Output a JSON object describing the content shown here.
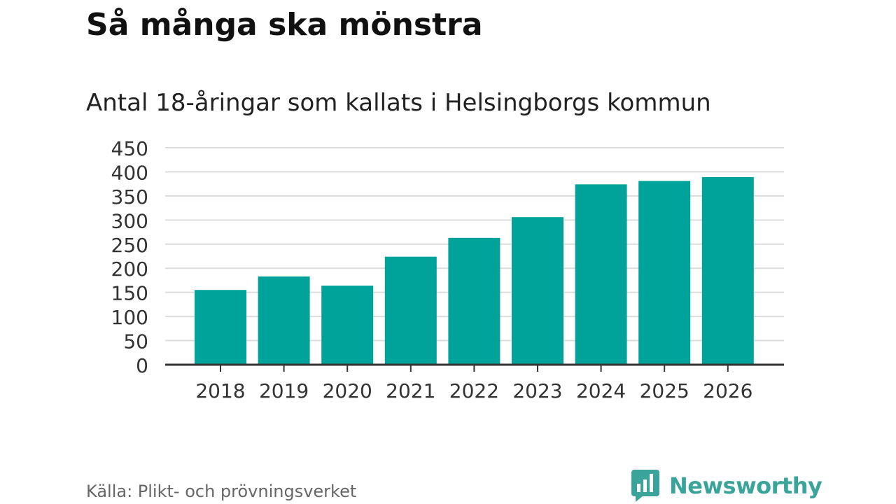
{
  "header": {
    "title": "Så många ska mönstra"
  },
  "chart_data": {
    "type": "bar",
    "title": "Så många ska mönstra",
    "subtitle": "Antal 18-åringar som kallats i Helsingborgs kommun",
    "categories": [
      "2018",
      "2019",
      "2020",
      "2021",
      "2022",
      "2023",
      "2024",
      "2025",
      "2026"
    ],
    "values": [
      155,
      183,
      164,
      224,
      263,
      306,
      374,
      381,
      389
    ],
    "xlabel": "",
    "ylabel": "",
    "ylim": [
      0,
      450
    ],
    "yticks": [
      "0",
      "50",
      "100",
      "150",
      "200",
      "250",
      "300",
      "350",
      "400",
      "450"
    ],
    "grid": true,
    "legend": "none",
    "bar_color": "#00a39a"
  },
  "footer": {
    "source": "Källa: Plikt- och prövningsverket",
    "brand": "Newsworthy",
    "brand_icon": "newsworthy-logo-icon",
    "brand_color": "#3aa39a"
  }
}
